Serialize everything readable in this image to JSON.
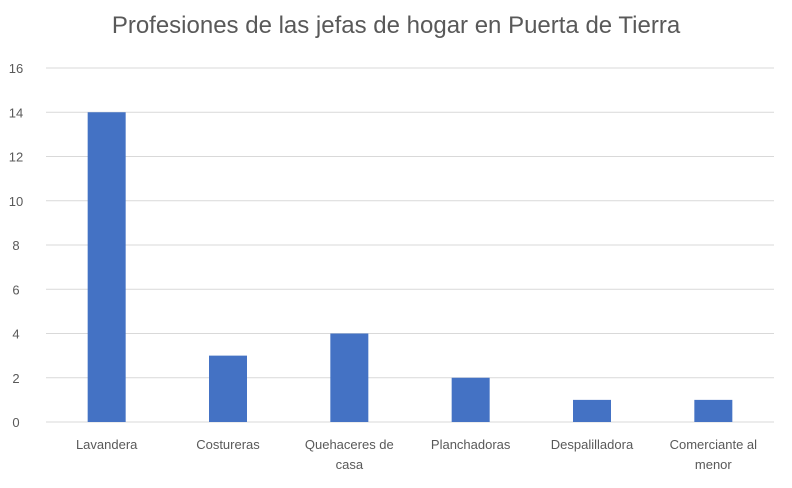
{
  "chart_data": {
    "type": "bar",
    "title": "Profesiones de las jefas de hogar en Puerta de Tierra",
    "categories": [
      [
        "Lavandera"
      ],
      [
        "Costureras"
      ],
      [
        "Quehaceres de",
        "casa"
      ],
      [
        "Planchadoras"
      ],
      [
        "Despalilladora"
      ],
      [
        "Comerciante al",
        "menor"
      ]
    ],
    "values": [
      14,
      3,
      4,
      2,
      1,
      1
    ],
    "ylim": [
      0,
      16
    ],
    "yticks": [
      0,
      2,
      4,
      6,
      8,
      10,
      12,
      14,
      16
    ],
    "grid": true,
    "legend": "none",
    "colors": {
      "bar": "#4472C4",
      "grid": "#D9D9D9",
      "text": "#595959"
    }
  }
}
